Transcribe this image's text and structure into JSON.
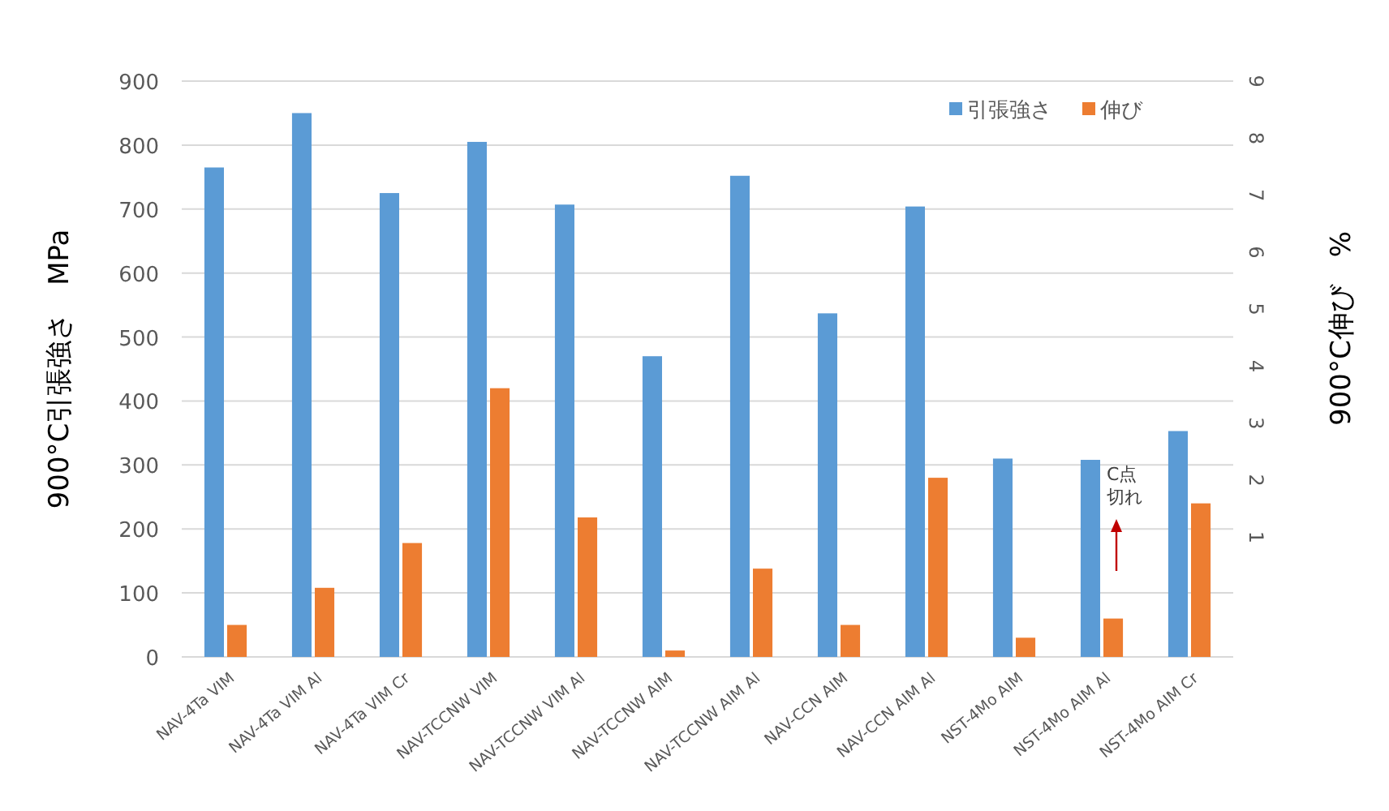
{
  "chart_data": {
    "type": "bar",
    "categories": [
      "NAV-4Ta VIM",
      "NAV-4Ta VIM Al",
      "NAV-4Ta VIM Cr",
      "NAV-TCCNW VIM",
      "NAV-TCCNW VIM Al",
      "NAV-TCCNW AIM",
      "NAV-TCCNW AIM Al",
      "NAV-CCN AIM",
      "NAV-CCN AIM Al",
      "NST-4Mo AIM",
      "NST-4Mo AIM Al",
      "NST-4Mo AIM Cr"
    ],
    "series": [
      {
        "name": "引張強さ",
        "color": "#5b9bd5",
        "values": [
          765,
          850,
          725,
          805,
          707,
          470,
          752,
          537,
          704,
          310,
          308,
          353
        ]
      },
      {
        "name": "伸び",
        "color": "#ed7d31",
        "values": [
          50,
          108,
          178,
          420,
          218,
          10,
          138,
          50,
          280,
          30,
          60,
          240
        ]
      }
    ],
    "ylabel": "900°C引張強さ　MPa",
    "y2label": "900°C伸び　%",
    "ylim": [
      0,
      900
    ],
    "yticks": [
      0,
      100,
      200,
      300,
      400,
      500,
      600,
      700,
      800,
      900
    ],
    "y2lim": [
      -1.1,
      9
    ],
    "y2ticks": [
      1,
      2,
      3,
      4,
      5,
      6,
      7,
      8,
      9
    ],
    "annotations": [
      "C点切れ"
    ],
    "grid": "y",
    "legend": "top right"
  }
}
